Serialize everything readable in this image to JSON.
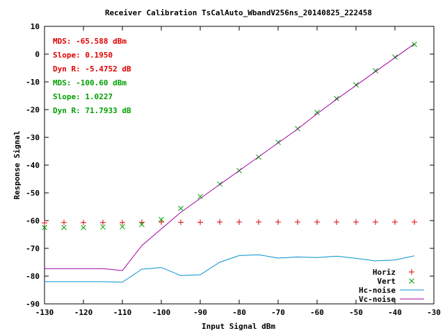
{
  "chart_data": {
    "type": "line",
    "title": "Receiver Calibration TsCalAuto_WbandV256ns_20140825_222458",
    "xlabel": "Input Signal dBm",
    "ylabel": "Response Signal",
    "xlim": [
      -130,
      -30
    ],
    "ylim": [
      -90,
      10
    ],
    "xticks": [
      -130,
      -120,
      -110,
      -100,
      -90,
      -80,
      -70,
      -60,
      -50,
      -40,
      -30
    ],
    "yticks": [
      -90,
      -80,
      -70,
      -60,
      -50,
      -40,
      -30,
      -20,
      -10,
      0,
      10
    ],
    "grid": false,
    "legend_position": "bottom-right",
    "annotations": [
      {
        "text": "MDS: -65.588 dBm",
        "color": "#e00000"
      },
      {
        "text": "Slope: 0.1950",
        "color": "#e00000"
      },
      {
        "text": "Dyn R: -5.4752 dB",
        "color": "#e00000"
      },
      {
        "text": "MDS: -100.60 dBm",
        "color": "#00a000"
      },
      {
        "text": "Slope: 1.0227",
        "color": "#00a000"
      },
      {
        "text": "Dyn R: 71.7933 dB",
        "color": "#00a000"
      }
    ],
    "series": [
      {
        "name": "Horiz",
        "style": "points",
        "marker": "plus",
        "color": "#e00000",
        "x": [
          -130,
          -125,
          -120,
          -115,
          -110,
          -105,
          -100,
          -95,
          -90,
          -85,
          -80,
          -75,
          -70,
          -65,
          -60,
          -55,
          -50,
          -45,
          -40,
          -35
        ],
        "y": [
          -60.8,
          -60.7,
          -60.7,
          -60.7,
          -60.7,
          -60.6,
          -60.5,
          -60.6,
          -60.6,
          -60.5,
          -60.5,
          -60.5,
          -60.5,
          -60.5,
          -60.5,
          -60.5,
          -60.5,
          -60.5,
          -60.5,
          -60.5
        ]
      },
      {
        "name": "Vert",
        "style": "points",
        "marker": "cross",
        "color": "#00a000",
        "x": [
          -130,
          -125,
          -120,
          -115,
          -110,
          -105,
          -100,
          -95,
          -90,
          -85,
          -80,
          -75,
          -70,
          -65,
          -60,
          -55,
          -50,
          -45,
          -40,
          -35
        ],
        "y": [
          -62.5,
          -62.5,
          -62.5,
          -62.3,
          -62.2,
          -61.4,
          -59.6,
          -55.6,
          -51.3,
          -46.8,
          -42.0,
          -37.1,
          -31.8,
          -26.9,
          -21.0,
          -16.0,
          -11.1,
          -6.0,
          -1.1,
          3.5
        ]
      },
      {
        "name": "Hc-noise",
        "style": "line",
        "color": "#0090d0",
        "x": [
          -130,
          -125,
          -120,
          -115,
          -110,
          -105,
          -100,
          -95,
          -90,
          -85,
          -80,
          -75,
          -70,
          -65,
          -60,
          -55,
          -50,
          -45,
          -40,
          -35
        ],
        "y": [
          -82.0,
          -82.0,
          -82.0,
          -82.0,
          -82.2,
          -77.5,
          -76.9,
          -79.8,
          -79.5,
          -75.0,
          -72.6,
          -72.3,
          -73.5,
          -73.1,
          -73.3,
          -72.8,
          -73.6,
          -74.5,
          -74.2,
          -72.7
        ]
      },
      {
        "name": "Vc-noise",
        "style": "line",
        "color": "#a000a0",
        "x": [
          -130,
          -125,
          -120,
          -115,
          -110,
          -105,
          -100,
          -95,
          -90,
          -85,
          -80,
          -75,
          -70,
          -65,
          -60,
          -55,
          -50,
          -45,
          -40,
          -35
        ],
        "y": [
          -77.3,
          -77.3,
          -77.3,
          -77.3,
          -78.0,
          -69.0,
          -63.0,
          -57.0,
          -52.0,
          -47.0,
          -42.0,
          -37.0,
          -32.0,
          -27.0,
          -21.5,
          -16.3,
          -11.3,
          -6.3,
          -1.3,
          3.7
        ]
      }
    ]
  }
}
